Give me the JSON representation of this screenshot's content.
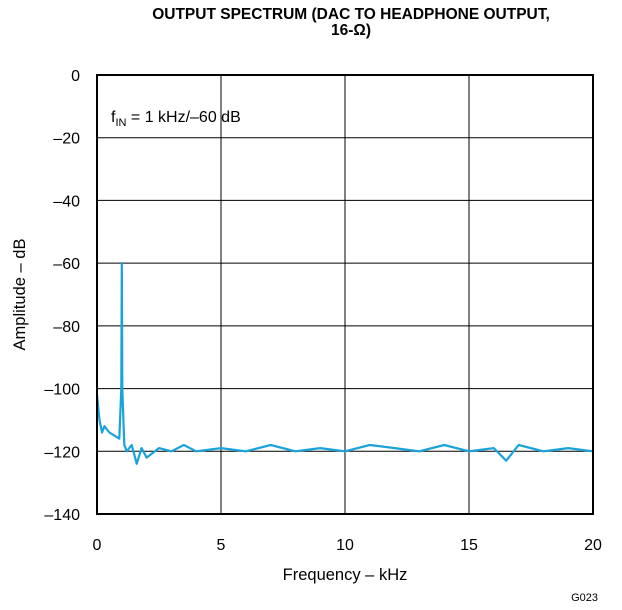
{
  "title_line1": "OUTPUT SPECTRUM (DAC TO HEADPHONE OUTPUT,",
  "title_line2": "16-Ω)",
  "figure_id": "G023",
  "chart_data": {
    "type": "line",
    "title": "OUTPUT SPECTRUM (DAC TO HEADPHONE OUTPUT, 16-Ω)",
    "xlabel": "Frequency – kHz",
    "ylabel": "Amplitude – dB",
    "xlim": [
      0,
      20
    ],
    "ylim": [
      -140,
      0
    ],
    "xticks": [
      0,
      5,
      10,
      15,
      20
    ],
    "yticks": [
      0,
      -20,
      -40,
      -60,
      -80,
      -100,
      -120,
      -140
    ],
    "xtick_labels": [
      "0",
      "5",
      "10",
      "15",
      "20"
    ],
    "ytick_labels": [
      "0",
      "–20",
      "–40",
      "–60",
      "–80",
      "–100",
      "–120",
      "–140"
    ],
    "grid": true,
    "annotation": {
      "prefix": "f",
      "subscript": "IN",
      "text": " = 1 kHz/–60 dB"
    },
    "series_color": "#1aa3d9",
    "series": [
      {
        "x": [
          0,
          0.1,
          0.2,
          0.3,
          0.5,
          0.7,
          0.9,
          0.98,
          1.0,
          1.02,
          1.1,
          1.2,
          1.4,
          1.6,
          1.8,
          2.0,
          2.5,
          3.0,
          3.5,
          4.0,
          5.0,
          6.0,
          7.0,
          8.0,
          9.0,
          10.0,
          11.0,
          12.0,
          13.0,
          14.0,
          15.0,
          16.0,
          16.5,
          17.0,
          18.0,
          19.0,
          20.0
        ],
        "y": [
          -102,
          -110,
          -114,
          -112,
          -114,
          -115,
          -116,
          -100,
          -60,
          -100,
          -118,
          -120,
          -118,
          -124,
          -119,
          -122,
          -119,
          -120,
          -118,
          -120,
          -119,
          -120,
          -118,
          -120,
          -119,
          -120,
          -118,
          -119,
          -120,
          -118,
          -120,
          -119,
          -123,
          -118,
          -120,
          -119,
          -120
        ]
      }
    ]
  }
}
